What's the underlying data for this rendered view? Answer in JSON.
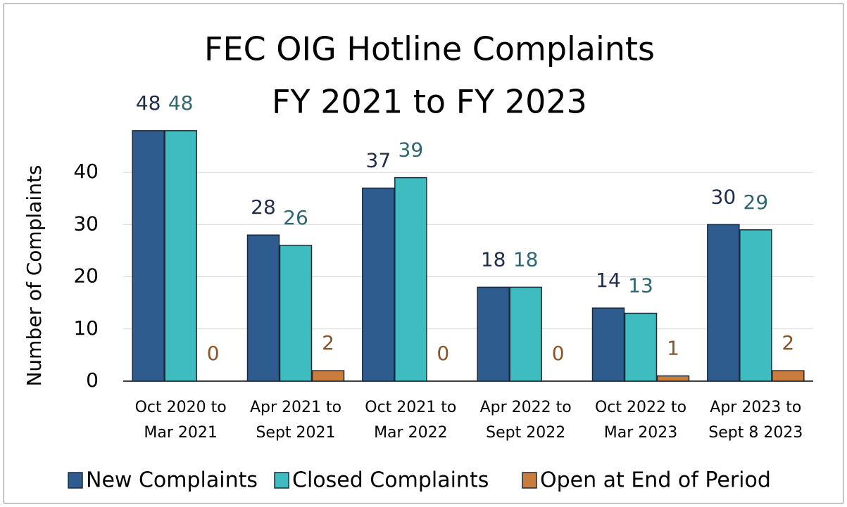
{
  "chart_data": {
    "type": "bar",
    "title": [
      "FEC OIG Hotline Complaints",
      "FY 2021 to FY 2023"
    ],
    "y_label": "Number of Complaints",
    "categories": [
      [
        "Oct 2020 to",
        "Mar 2021"
      ],
      [
        "Apr 2021 to",
        "Sept 2021"
      ],
      [
        "Oct 2021 to",
        "Mar 2022"
      ],
      [
        "Apr 2022 to",
        "Sept 2022"
      ],
      [
        "Oct 2022 to",
        "Mar 2023"
      ],
      [
        "Apr 2023 to",
        "Sept 8 2023"
      ]
    ],
    "series": [
      {
        "name": "New Complaints",
        "color": "#2f5c8f",
        "label_color": "#1f2d4a",
        "values": [
          48,
          28,
          37,
          18,
          14,
          30
        ]
      },
      {
        "name": "Closed Complaints",
        "color": "#3fbcc0",
        "label_color": "#2e6770",
        "values": [
          48,
          26,
          39,
          18,
          13,
          29
        ]
      },
      {
        "name": "Open at End of Period",
        "color": "#c97d3d",
        "label_color": "#8a5526",
        "values": [
          0,
          2,
          0,
          0,
          1,
          2
        ]
      }
    ],
    "ylim": [
      0,
      50
    ],
    "yticks": [
      0,
      10,
      20,
      30,
      40
    ],
    "grid": true,
    "legend": "bottom"
  }
}
